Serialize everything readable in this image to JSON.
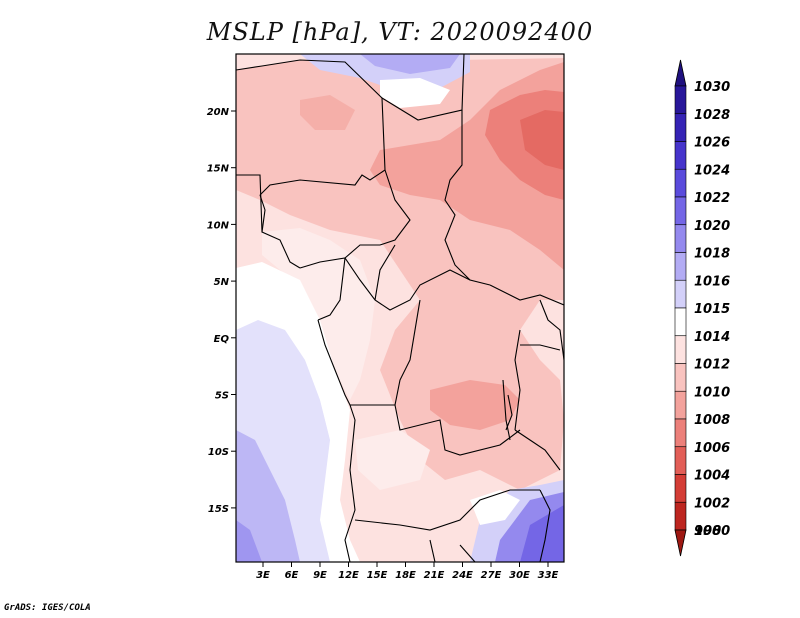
{
  "title": "MSLP [hPa], VT: 2020092400",
  "credit": "GrADS: IGES/COLA",
  "map": {
    "lon_ticks": [
      "3E",
      "6E",
      "9E",
      "12E",
      "15E",
      "18E",
      "21E",
      "24E",
      "27E",
      "30E",
      "33E"
    ],
    "lat_ticks": [
      "20N",
      "15N",
      "10N",
      "5N",
      "EQ",
      "5S",
      "10S",
      "15S"
    ]
  },
  "colorbar": {
    "levels": [
      {
        "label": "1030",
        "color": "#1f107f"
      },
      {
        "label": "1028",
        "color": "#28179a"
      },
      {
        "label": "1026",
        "color": "#3523b5"
      },
      {
        "label": "1024",
        "color": "#4634cc"
      },
      {
        "label": "1022",
        "color": "#5a4bdc"
      },
      {
        "label": "1020",
        "color": "#7466e6"
      },
      {
        "label": "1018",
        "color": "#9489ee"
      },
      {
        "label": "1016",
        "color": "#b3acf4"
      },
      {
        "label": "1015",
        "color": "#d3d0f9"
      },
      {
        "label": "1014",
        "color": "#ffffff"
      },
      {
        "label": "1012",
        "color": "#fde2e0"
      },
      {
        "label": "1010",
        "color": "#f9c3bf"
      },
      {
        "label": "1008",
        "color": "#f3a29c"
      },
      {
        "label": "1006",
        "color": "#ec807a"
      },
      {
        "label": "1004",
        "color": "#e25e57"
      },
      {
        "label": "1002",
        "color": "#d43d36"
      },
      {
        "label": "1000",
        "color": "#bd2620"
      },
      {
        "label": "998",
        "color": "#9e1812"
      }
    ]
  }
}
